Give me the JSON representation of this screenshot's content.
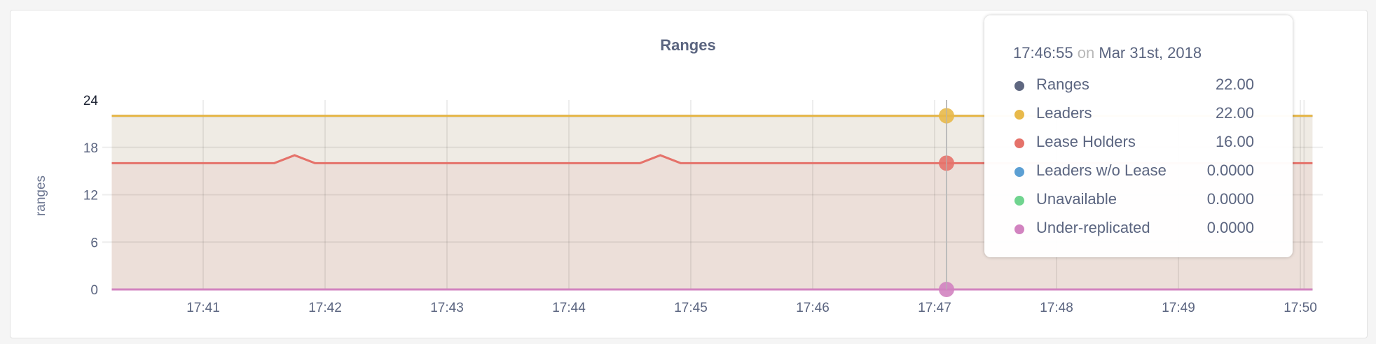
{
  "chart_data": {
    "type": "area",
    "title": "Ranges",
    "ylabel": "ranges",
    "xlabel": "",
    "ylim": [
      0,
      24
    ],
    "yticks": [
      "0",
      "6",
      "12",
      "18",
      "24"
    ],
    "xticks": [
      "17:41",
      "17:42",
      "17:43",
      "17:44",
      "17:45",
      "17:46",
      "17:47",
      "17:48",
      "17:49",
      "17:50"
    ],
    "xrange": [
      "17:40:15",
      "17:50:06"
    ],
    "grid": true,
    "series": [
      {
        "name": "Ranges",
        "color": "#5f6780",
        "points": [
          [
            "17:40:15",
            22
          ],
          [
            "17:50:06",
            22
          ]
        ]
      },
      {
        "name": "Leaders",
        "color": "#e8b94a",
        "fill": "#efebe4",
        "points": [
          [
            "17:40:15",
            22
          ],
          [
            "17:50:06",
            22
          ]
        ]
      },
      {
        "name": "Lease Holders",
        "color": "#e5726a",
        "fill": "#ecdfd9",
        "points": [
          [
            "17:40:15",
            16
          ],
          [
            "17:41:35",
            16
          ],
          [
            "17:41:45",
            17
          ],
          [
            "17:41:55",
            16
          ],
          [
            "17:44:35",
            16
          ],
          [
            "17:44:45",
            17
          ],
          [
            "17:44:55",
            16
          ],
          [
            "17:50:06",
            16
          ]
        ]
      },
      {
        "name": "Leaders w/o Lease",
        "color": "#5c9fd3",
        "points": [
          [
            "17:40:15",
            0
          ],
          [
            "17:50:06",
            0
          ]
        ]
      },
      {
        "name": "Unavailable",
        "color": "#70d48f",
        "points": [
          [
            "17:40:15",
            0
          ],
          [
            "17:50:06",
            0
          ]
        ]
      },
      {
        "name": "Under-replicated",
        "color": "#d283c0",
        "points": [
          [
            "17:40:15",
            0
          ],
          [
            "17:50:06",
            0
          ]
        ]
      }
    ]
  },
  "tooltip": {
    "time": "17:46:55",
    "on": "on",
    "date": "Mar 31st, 2018",
    "rows": [
      {
        "label": "Ranges",
        "value": "22.00",
        "color": "#5f6780"
      },
      {
        "label": "Leaders",
        "value": "22.00",
        "color": "#e8b94a"
      },
      {
        "label": "Lease Holders",
        "value": "16.00",
        "color": "#e5726a"
      },
      {
        "label": "Leaders w/o Lease",
        "value": "0.0000",
        "color": "#5c9fd3"
      },
      {
        "label": "Unavailable",
        "value": "0.0000",
        "color": "#70d48f"
      },
      {
        "label": "Under-replicated",
        "value": "0.0000",
        "color": "#d283c0"
      }
    ]
  }
}
